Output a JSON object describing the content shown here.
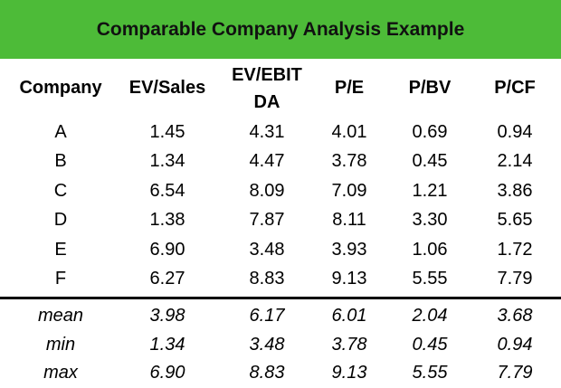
{
  "title": "Comparable Company Analysis Example",
  "colors": {
    "banner": "#4dbb38",
    "text": "#111111"
  },
  "headers": [
    "Company",
    "EV/Sales",
    "EV/EBITDA",
    "P/E",
    "P/BV",
    "P/CF"
  ],
  "rows": [
    [
      "A",
      "1.45",
      "4.31",
      "4.01",
      "0.69",
      "0.94"
    ],
    [
      "B",
      "1.34",
      "4.47",
      "3.78",
      "0.45",
      "2.14"
    ],
    [
      "C",
      "6.54",
      "8.09",
      "7.09",
      "1.21",
      "3.86"
    ],
    [
      "D",
      "1.38",
      "7.87",
      "8.11",
      "3.30",
      "5.65"
    ],
    [
      "E",
      "6.90",
      "3.48",
      "3.93",
      "1.06",
      "1.72"
    ],
    [
      "F",
      "6.27",
      "8.83",
      "9.13",
      "5.55",
      "7.79"
    ]
  ],
  "stats": [
    [
      "mean",
      "3.98",
      "6.17",
      "6.01",
      "2.04",
      "3.68"
    ],
    [
      "min",
      "1.34",
      "3.48",
      "3.78",
      "0.45",
      "0.94"
    ],
    [
      "max",
      "6.90",
      "8.83",
      "9.13",
      "5.55",
      "7.79"
    ]
  ]
}
